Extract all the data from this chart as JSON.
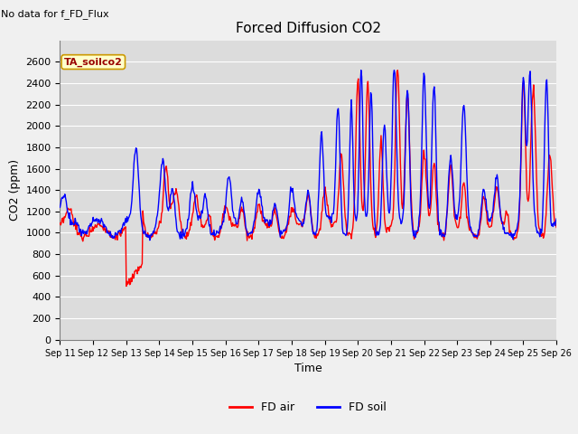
{
  "title": "Forced Diffusion CO2",
  "top_left_text": "No data for f_FD_Flux",
  "box_label": "TA_soilco2",
  "xlabel": "Time",
  "ylabel": "CO2 (ppm)",
  "ylim": [
    0,
    2800
  ],
  "yticks": [
    0,
    200,
    400,
    600,
    800,
    1000,
    1200,
    1400,
    1600,
    1800,
    2000,
    2200,
    2400,
    2600
  ],
  "x_labels": [
    "Sep 11",
    "Sep 12",
    "Sep 13",
    "Sep 14",
    "Sep 15",
    "Sep 16",
    "Sep 17",
    "Sep 18",
    "Sep 19",
    "Sep 20",
    "Sep 21",
    "Sep 22",
    "Sep 23",
    "Sep 24",
    "Sep 25",
    "Sep 26"
  ],
  "line_red_color": "#ff0000",
  "line_blue_color": "#0000ff",
  "fig_bg": "#f0f0f0",
  "plot_bg": "#dcdcdc",
  "legend_red_label": "FD air",
  "legend_blue_label": "FD soil",
  "title_fontsize": 11,
  "axis_label_fontsize": 9,
  "tick_fontsize": 8,
  "line_width": 1.0,
  "n_days": 15,
  "n_points": 720
}
